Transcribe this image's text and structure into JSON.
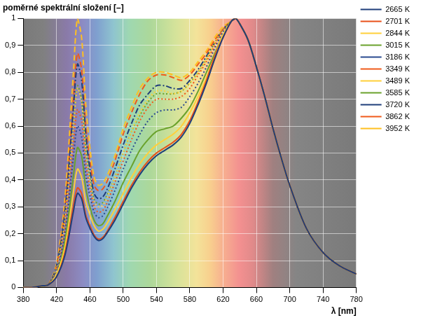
{
  "chart_data": {
    "type": "line",
    "title": "poměrné spektrální složení [–]",
    "x_label": "λ [nm]",
    "x": [
      380,
      390,
      400,
      410,
      420,
      430,
      440,
      445,
      450,
      455,
      460,
      465,
      470,
      475,
      480,
      490,
      500,
      510,
      520,
      530,
      540,
      550,
      560,
      570,
      580,
      590,
      600,
      610,
      620,
      630,
      635,
      640,
      650,
      660,
      670,
      680,
      690,
      700,
      720,
      740,
      760,
      780
    ],
    "xlim": [
      380,
      780
    ],
    "xticks": [
      380,
      420,
      460,
      500,
      540,
      580,
      620,
      660,
      700,
      740,
      780
    ],
    "ylim": [
      0,
      1
    ],
    "yticks": [
      0,
      {
        "value": 0.1,
        "label": "0,1"
      },
      {
        "value": 0.2,
        "label": "0,2"
      },
      {
        "value": 0.3,
        "label": "0,3"
      },
      {
        "value": 0.4,
        "label": "0,4"
      },
      {
        "value": 0.5,
        "label": "0,5"
      },
      {
        "value": 0.6,
        "label": "0,6"
      },
      {
        "value": 0.7,
        "label": "0,7"
      },
      {
        "value": 0.8,
        "label": "0,8"
      },
      {
        "value": 0.9,
        "label": "0,9"
      },
      1
    ],
    "grid": true,
    "legend": "right",
    "series": [
      {
        "name": "2665 K",
        "color": "#1f3e7a",
        "line_style": "solid",
        "values": [
          0,
          0,
          0.005,
          0.01,
          0.04,
          0.12,
          0.28,
          0.35,
          0.33,
          0.26,
          0.22,
          0.19,
          0.175,
          0.18,
          0.2,
          0.25,
          0.31,
          0.37,
          0.42,
          0.46,
          0.49,
          0.51,
          0.53,
          0.56,
          0.61,
          0.68,
          0.76,
          0.85,
          0.93,
          0.99,
          1,
          0.98,
          0.92,
          0.82,
          0.71,
          0.59,
          0.48,
          0.38,
          0.22,
          0.13,
          0.08,
          0.05
        ]
      },
      {
        "name": "2701 K",
        "color": "#e8501a",
        "line_style": "solid",
        "values": [
          0,
          0,
          0.005,
          0.01,
          0.04,
          0.13,
          0.3,
          0.37,
          0.35,
          0.27,
          0.23,
          0.195,
          0.18,
          0.185,
          0.205,
          0.26,
          0.32,
          0.38,
          0.43,
          0.47,
          0.5,
          0.52,
          0.54,
          0.57,
          0.62,
          0.69,
          0.77,
          0.86,
          0.93,
          0.99,
          1,
          0.98,
          0.92,
          0.82,
          0.71,
          0.59,
          0.48,
          0.38,
          0.22,
          0.13,
          0.08,
          0.05
        ]
      },
      {
        "name": "2844 K",
        "color": "#ffd03a",
        "line_style": "solid",
        "values": [
          0,
          0,
          0.005,
          0.01,
          0.05,
          0.15,
          0.35,
          0.44,
          0.41,
          0.32,
          0.27,
          0.23,
          0.21,
          0.215,
          0.235,
          0.29,
          0.35,
          0.41,
          0.46,
          0.5,
          0.53,
          0.55,
          0.57,
          0.6,
          0.65,
          0.71,
          0.78,
          0.86,
          0.94,
          0.99,
          1,
          0.98,
          0.92,
          0.82,
          0.71,
          0.59,
          0.48,
          0.38,
          0.22,
          0.13,
          0.08,
          0.05
        ]
      },
      {
        "name": "3015 K",
        "color": "#6aa22c",
        "line_style": "solid",
        "values": [
          0,
          0,
          0.005,
          0.01,
          0.05,
          0.17,
          0.41,
          0.52,
          0.49,
          0.37,
          0.3,
          0.25,
          0.23,
          0.235,
          0.26,
          0.32,
          0.39,
          0.45,
          0.51,
          0.55,
          0.58,
          0.59,
          0.6,
          0.63,
          0.67,
          0.73,
          0.8,
          0.87,
          0.94,
          0.99,
          1,
          0.98,
          0.92,
          0.82,
          0.71,
          0.59,
          0.48,
          0.38,
          0.22,
          0.13,
          0.08,
          0.05
        ]
      },
      {
        "name": "3186 K",
        "color": "#2a4a90",
        "line_style": "dotted",
        "values": [
          0,
          0,
          0.005,
          0.01,
          0.06,
          0.2,
          0.48,
          0.6,
          0.56,
          0.42,
          0.34,
          0.28,
          0.26,
          0.265,
          0.29,
          0.36,
          0.44,
          0.51,
          0.57,
          0.62,
          0.65,
          0.66,
          0.66,
          0.67,
          0.71,
          0.76,
          0.82,
          0.89,
          0.95,
          0.99,
          1,
          0.98,
          0.92,
          0.82,
          0.71,
          0.59,
          0.48,
          0.38,
          0.22,
          0.13,
          0.08,
          0.05
        ]
      },
      {
        "name": "3349 K",
        "color": "#f05a1a",
        "line_style": "dotted",
        "values": [
          0,
          0,
          0.005,
          0.01,
          0.06,
          0.22,
          0.53,
          0.66,
          0.62,
          0.46,
          0.37,
          0.3,
          0.28,
          0.285,
          0.31,
          0.39,
          0.47,
          0.55,
          0.62,
          0.67,
          0.7,
          0.7,
          0.7,
          0.71,
          0.74,
          0.79,
          0.84,
          0.9,
          0.96,
          0.99,
          1,
          0.98,
          0.92,
          0.82,
          0.71,
          0.59,
          0.48,
          0.38,
          0.22,
          0.13,
          0.08,
          0.05
        ]
      },
      {
        "name": "3489 K",
        "color": "#ffd03a",
        "line_style": "dotted",
        "values": [
          0,
          0,
          0.005,
          0.01,
          0.07,
          0.25,
          0.59,
          0.74,
          0.69,
          0.51,
          0.4,
          0.32,
          0.3,
          0.305,
          0.33,
          0.41,
          0.5,
          0.58,
          0.65,
          0.7,
          0.73,
          0.73,
          0.72,
          0.73,
          0.76,
          0.8,
          0.85,
          0.91,
          0.96,
          0.99,
          1,
          0.98,
          0.92,
          0.82,
          0.71,
          0.59,
          0.48,
          0.38,
          0.22,
          0.13,
          0.08,
          0.05
        ]
      },
      {
        "name": "3585 K",
        "color": "#6aa22c",
        "line_style": "dotted",
        "values": [
          0,
          0,
          0.005,
          0.01,
          0.07,
          0.25,
          0.6,
          0.75,
          0.7,
          0.52,
          0.41,
          0.33,
          0.31,
          0.315,
          0.34,
          0.41,
          0.5,
          0.58,
          0.64,
          0.69,
          0.72,
          0.72,
          0.72,
          0.73,
          0.76,
          0.8,
          0.85,
          0.91,
          0.96,
          0.99,
          1,
          0.98,
          0.92,
          0.82,
          0.71,
          0.59,
          0.48,
          0.38,
          0.22,
          0.13,
          0.08,
          0.05
        ]
      },
      {
        "name": "3720 K",
        "color": "#1f3e7a",
        "line_style": "dashdot",
        "values": [
          0,
          0,
          0.005,
          0.01,
          0.08,
          0.28,
          0.66,
          0.83,
          0.77,
          0.57,
          0.44,
          0.35,
          0.33,
          0.335,
          0.36,
          0.44,
          0.53,
          0.61,
          0.68,
          0.72,
          0.75,
          0.75,
          0.74,
          0.74,
          0.77,
          0.81,
          0.86,
          0.91,
          0.96,
          0.99,
          1,
          0.98,
          0.92,
          0.82,
          0.71,
          0.59,
          0.48,
          0.38,
          0.22,
          0.13,
          0.08,
          0.05
        ]
      },
      {
        "name": "3862 K",
        "color": "#f05a1a",
        "line_style": "dashed",
        "values": [
          0,
          0,
          0.005,
          0.01,
          0.08,
          0.29,
          0.69,
          0.87,
          0.81,
          0.6,
          0.47,
          0.38,
          0.36,
          0.365,
          0.39,
          0.47,
          0.57,
          0.65,
          0.72,
          0.77,
          0.79,
          0.79,
          0.78,
          0.77,
          0.79,
          0.83,
          0.87,
          0.92,
          0.96,
          0.99,
          1,
          0.98,
          0.92,
          0.82,
          0.71,
          0.59,
          0.48,
          0.38,
          0.22,
          0.13,
          0.08,
          0.05
        ]
      },
      {
        "name": "3952 K",
        "color": "#ffc020",
        "line_style": "dashed",
        "values": [
          0,
          0,
          0.005,
          0.01,
          0.09,
          0.33,
          0.79,
          1.0,
          0.93,
          0.68,
          0.52,
          0.41,
          0.38,
          0.385,
          0.41,
          0.49,
          0.59,
          0.67,
          0.74,
          0.78,
          0.8,
          0.8,
          0.79,
          0.78,
          0.8,
          0.84,
          0.88,
          0.93,
          0.97,
          0.99,
          1,
          0.98,
          0.92,
          0.82,
          0.71,
          0.59,
          0.48,
          0.38,
          0.22,
          0.13,
          0.08,
          0.05
        ]
      }
    ]
  }
}
